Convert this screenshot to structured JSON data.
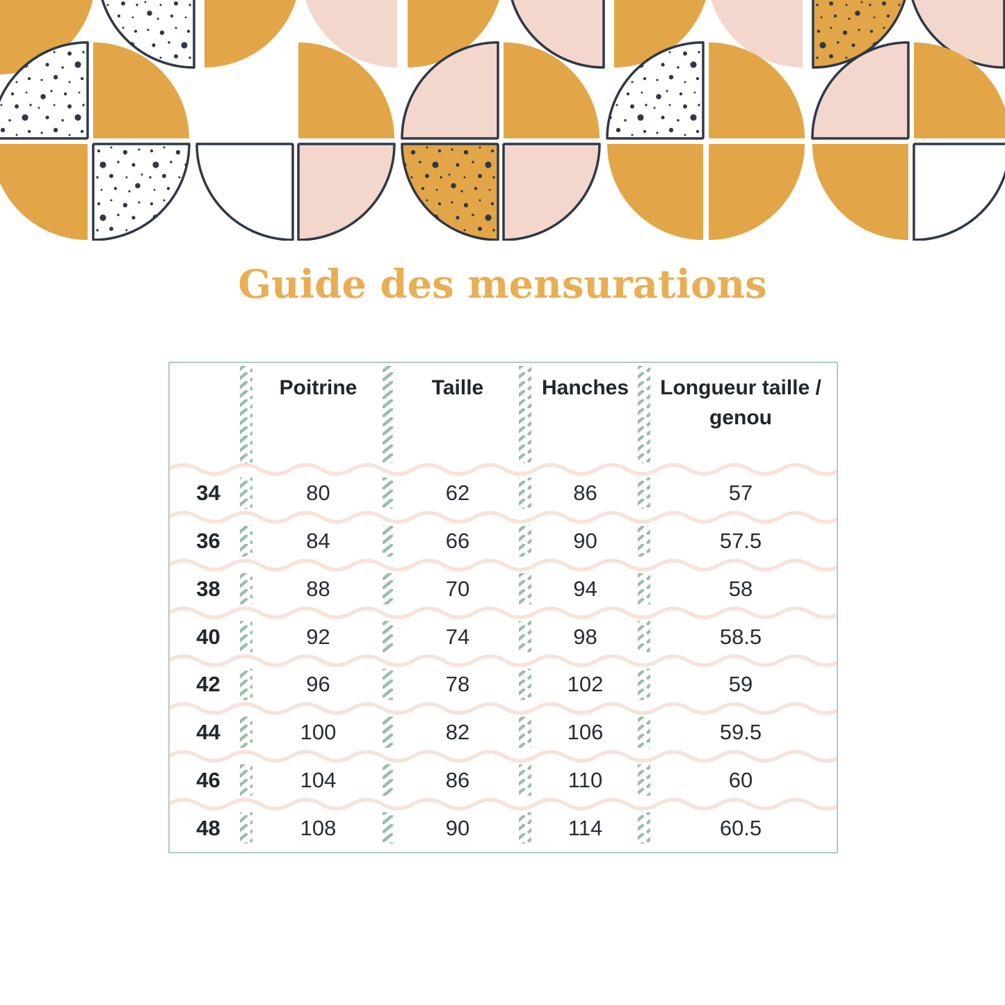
{
  "title": "Guide des mensurations",
  "table": {
    "size_column_header": "",
    "headers": [
      "Poitrine",
      "Taille",
      "Hanches",
      "Longueur taille / genou"
    ],
    "rows": [
      {
        "size": "34",
        "values": [
          "80",
          "62",
          "86",
          "57"
        ]
      },
      {
        "size": "36",
        "values": [
          "84",
          "66",
          "90",
          "57.5"
        ]
      },
      {
        "size": "38",
        "values": [
          "88",
          "70",
          "94",
          "58"
        ]
      },
      {
        "size": "40",
        "values": [
          "92",
          "74",
          "98",
          "58.5"
        ]
      },
      {
        "size": "42",
        "values": [
          "96",
          "78",
          "102",
          "59"
        ]
      },
      {
        "size": "44",
        "values": [
          "100",
          "82",
          "106",
          "59.5"
        ]
      },
      {
        "size": "46",
        "values": [
          "104",
          "86",
          "110",
          "60"
        ]
      },
      {
        "size": "48",
        "values": [
          "108",
          "90",
          "114",
          "60.5"
        ]
      }
    ]
  },
  "colors": {
    "mustard": "#E2A648",
    "blush": "#F3D7CD",
    "navy": "#2F3847",
    "hatch_green": "#97BFA5",
    "border_green": "#AFCCBD",
    "wave_pink": "#F6E3DC",
    "title_gold": "#E9AE53",
    "ink": "#20262E"
  }
}
